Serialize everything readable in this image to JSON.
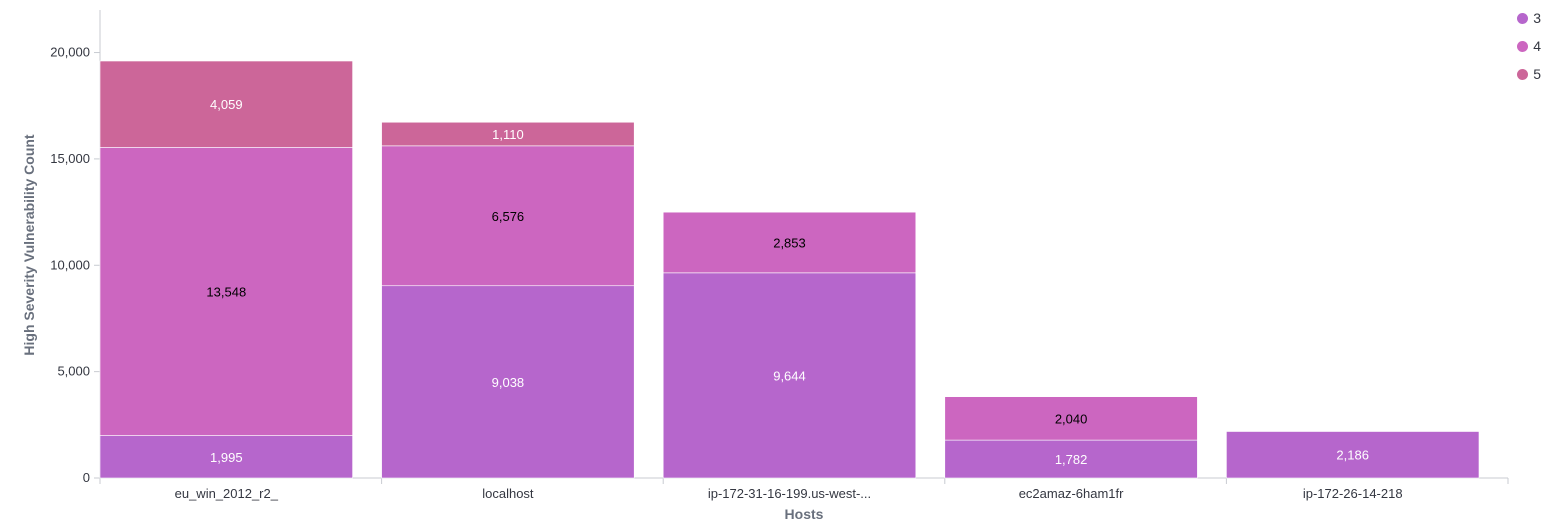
{
  "chart_data": {
    "type": "bar",
    "stacked": true,
    "title": "",
    "xlabel": "Hosts",
    "ylabel": "High Severity Vulnerability Count",
    "ylim": [
      0,
      22000
    ],
    "yticks": [
      0,
      5000,
      10000,
      15000,
      20000
    ],
    "ytick_labels": [
      "0",
      "5,000",
      "10,000",
      "15,000",
      "20,000"
    ],
    "categories": [
      "eu_win_2012_r2_",
      "localhost",
      "ip-172-31-16-199.us-west-...",
      "ec2amaz-6ham1fr",
      "ip-172-26-14-218"
    ],
    "series": [
      {
        "name": "3",
        "color": "#b666cc",
        "label_color": "#ffffff",
        "values": [
          1995,
          9038,
          9644,
          1782,
          2186
        ],
        "labels": [
          "1,995",
          "9,038",
          "9,644",
          "1,782",
          "2,186"
        ]
      },
      {
        "name": "4",
        "color": "#cc66c0",
        "label_color": "#000000",
        "values": [
          13548,
          6576,
          2853,
          2040,
          null
        ],
        "labels": [
          "13,548",
          "6,576",
          "2,853",
          "2,040",
          ""
        ]
      },
      {
        "name": "5",
        "color": "#cc6699",
        "label_color": "#ffffff",
        "values": [
          4059,
          1110,
          null,
          null,
          null
        ],
        "labels": [
          "4,059",
          "1,110",
          "",
          "",
          ""
        ]
      }
    ],
    "grid": false,
    "legend_position": "top-right"
  },
  "legend": {
    "items": [
      {
        "label": "3",
        "color": "#b666cc"
      },
      {
        "label": "4",
        "color": "#cc66c0"
      },
      {
        "label": "5",
        "color": "#cc6699"
      }
    ]
  }
}
